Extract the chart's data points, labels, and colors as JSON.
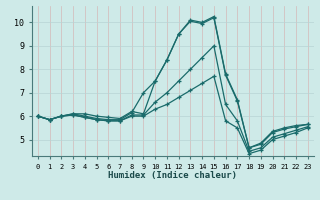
{
  "xlabel": "Humidex (Indice chaleur)",
  "background_color": "#ceeae8",
  "grid_color_v": "#d4b8b8",
  "grid_color_h": "#b8d4d4",
  "line_color": "#1a6b6b",
  "series": [
    [
      6.0,
      5.85,
      6.0,
      6.1,
      6.1,
      6.0,
      5.95,
      5.9,
      6.2,
      6.1,
      7.5,
      8.4,
      9.5,
      10.1,
      10.0,
      10.25,
      7.8,
      6.7,
      4.65,
      4.85,
      5.35,
      5.5,
      5.6,
      5.65
    ],
    [
      6.0,
      5.85,
      6.0,
      6.1,
      6.0,
      5.9,
      5.85,
      5.85,
      6.15,
      7.0,
      7.5,
      8.4,
      9.5,
      10.05,
      9.95,
      10.2,
      7.75,
      6.65,
      4.65,
      4.8,
      5.3,
      5.45,
      5.55,
      5.65
    ],
    [
      6.0,
      5.85,
      6.0,
      6.05,
      5.95,
      5.85,
      5.8,
      5.8,
      6.05,
      6.05,
      6.6,
      7.0,
      7.5,
      8.0,
      8.5,
      9.0,
      6.5,
      5.8,
      4.5,
      4.65,
      5.1,
      5.25,
      5.4,
      5.55
    ],
    [
      6.0,
      5.85,
      6.0,
      6.05,
      5.95,
      5.85,
      5.8,
      5.8,
      6.0,
      6.0,
      6.3,
      6.5,
      6.8,
      7.1,
      7.4,
      7.7,
      5.8,
      5.5,
      4.4,
      4.55,
      5.0,
      5.15,
      5.3,
      5.5
    ]
  ],
  "xmin": -0.5,
  "xmax": 23.5,
  "ymin": 4.3,
  "ymax": 10.7,
  "yticks": [
    5,
    6,
    7,
    8,
    9,
    10
  ],
  "xticks": [
    0,
    1,
    2,
    3,
    4,
    5,
    6,
    7,
    8,
    9,
    10,
    11,
    12,
    13,
    14,
    15,
    16,
    17,
    18,
    19,
    20,
    21,
    22,
    23
  ],
  "marker": "+",
  "markersize": 3.5,
  "linewidth": 0.9
}
